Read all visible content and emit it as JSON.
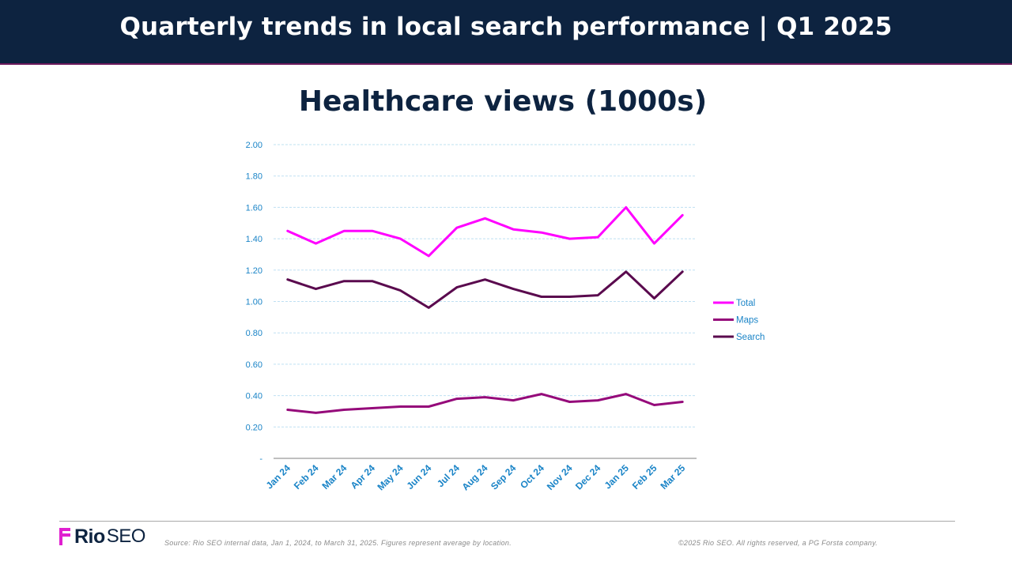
{
  "header": {
    "title": "Quarterly trends in local search performance | Q1 2025"
  },
  "chart_data": {
    "type": "line",
    "title": "Healthcare views (1000s)",
    "categories": [
      "Jan 24",
      "Feb 24",
      "Mar 24",
      "Apr 24",
      "May 24",
      "Jun 24",
      "Jul 24",
      "Aug 24",
      "Sep 24",
      "Oct 24",
      "Nov 24",
      "Dec 24",
      "Jan 25",
      "Feb 25",
      "Mar 25"
    ],
    "series": [
      {
        "name": "Total",
        "color": "#ff00ff",
        "values": [
          1.45,
          1.37,
          1.45,
          1.45,
          1.4,
          1.29,
          1.47,
          1.53,
          1.46,
          1.44,
          1.4,
          1.41,
          1.6,
          1.37,
          1.55
        ]
      },
      {
        "name": "Maps",
        "color": "#950a7a",
        "values": [
          0.31,
          0.29,
          0.31,
          0.32,
          0.33,
          0.33,
          0.38,
          0.39,
          0.37,
          0.41,
          0.36,
          0.37,
          0.41,
          0.34,
          0.36
        ]
      },
      {
        "name": "Search",
        "color": "#5a0a4e",
        "values": [
          1.14,
          1.08,
          1.13,
          1.13,
          1.07,
          0.96,
          1.09,
          1.14,
          1.08,
          1.03,
          1.03,
          1.04,
          1.19,
          1.02,
          1.19
        ]
      }
    ],
    "yticks": [
      "-",
      "0.20",
      "0.40",
      "0.60",
      "0.80",
      "1.00",
      "1.20",
      "1.40",
      "1.60",
      "1.80",
      "2.00"
    ],
    "ylim": [
      0,
      2.0
    ],
    "grid": true,
    "legend_position": "right"
  },
  "footer": {
    "logo_rio": "Rio",
    "logo_seo": "SEO",
    "source": "Source: Rio SEO internal data, Jan 1, 2024, to March 31, 2025. Figures represent average by location.",
    "copyright": "©2025 Rio SEO. All rights reserved, a PG Forsta company.",
    "brand_color": "#e020d0"
  }
}
